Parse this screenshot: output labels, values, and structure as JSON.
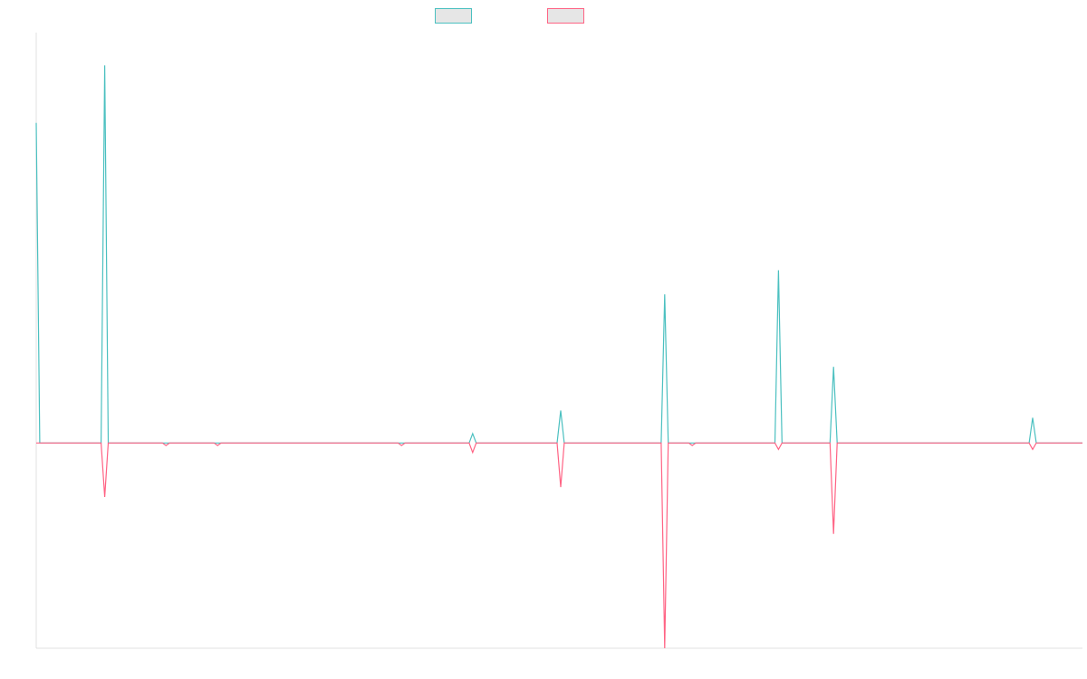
{
  "chart_data": {
    "type": "line",
    "title": "",
    "xlabel": "",
    "ylabel": "",
    "legend": {
      "placement": "top-center",
      "show_labels": false
    },
    "grid": false,
    "xlim": [
      0,
      1177
    ],
    "ylim": [
      -100,
      200
    ],
    "series": [
      {
        "color": "#4bc0c0",
        "legend_fill": "#e6e6e6",
        "points": [
          {
            "x": 0,
            "y": 156
          },
          {
            "x": 4,
            "y": 0
          },
          {
            "x": 73,
            "y": 0
          },
          {
            "x": 77,
            "y": 184
          },
          {
            "x": 81,
            "y": 0
          },
          {
            "x": 487,
            "y": 0
          },
          {
            "x": 491,
            "y": 4.6
          },
          {
            "x": 495,
            "y": 0
          },
          {
            "x": 586,
            "y": 0
          },
          {
            "x": 590,
            "y": 15.8
          },
          {
            "x": 594,
            "y": 0
          },
          {
            "x": 703,
            "y": 0
          },
          {
            "x": 707,
            "y": 72.4
          },
          {
            "x": 711,
            "y": 0
          },
          {
            "x": 831,
            "y": 0
          },
          {
            "x": 835,
            "y": 84.2
          },
          {
            "x": 839,
            "y": 0
          },
          {
            "x": 893,
            "y": 0
          },
          {
            "x": 897,
            "y": 37.1
          },
          {
            "x": 901,
            "y": 0
          },
          {
            "x": 1117,
            "y": 0
          },
          {
            "x": 1121,
            "y": 12.3
          },
          {
            "x": 1125,
            "y": 0
          },
          {
            "x": 1177,
            "y": 0
          }
        ]
      },
      {
        "color": "#ff6384",
        "legend_fill": "#e6e6e6",
        "points": [
          {
            "x": 0,
            "y": 0
          },
          {
            "x": 73,
            "y": 0
          },
          {
            "x": 77,
            "y": -26.3
          },
          {
            "x": 81,
            "y": 0
          },
          {
            "x": 142,
            "y": 0
          },
          {
            "x": 146,
            "y": -1.2
          },
          {
            "x": 150,
            "y": 0
          },
          {
            "x": 200,
            "y": 0
          },
          {
            "x": 204,
            "y": -1.2
          },
          {
            "x": 208,
            "y": 0
          },
          {
            "x": 407,
            "y": 0
          },
          {
            "x": 411,
            "y": -1.2
          },
          {
            "x": 415,
            "y": 0
          },
          {
            "x": 487,
            "y": 0
          },
          {
            "x": 491,
            "y": -4.6
          },
          {
            "x": 495,
            "y": 0
          },
          {
            "x": 586,
            "y": 0
          },
          {
            "x": 590,
            "y": -21.5
          },
          {
            "x": 594,
            "y": 0
          },
          {
            "x": 703,
            "y": 0
          },
          {
            "x": 707,
            "y": -100
          },
          {
            "x": 711,
            "y": 0
          },
          {
            "x": 734,
            "y": 0
          },
          {
            "x": 738,
            "y": -1.2
          },
          {
            "x": 742,
            "y": 0
          },
          {
            "x": 831,
            "y": 0
          },
          {
            "x": 835,
            "y": -3.1
          },
          {
            "x": 839,
            "y": 0
          },
          {
            "x": 893,
            "y": 0
          },
          {
            "x": 897,
            "y": -44.3
          },
          {
            "x": 901,
            "y": 0
          },
          {
            "x": 1117,
            "y": 0
          },
          {
            "x": 1121,
            "y": -3.1
          },
          {
            "x": 1125,
            "y": 0
          },
          {
            "x": 1177,
            "y": 0
          }
        ]
      }
    ]
  },
  "colors": {
    "axis": "#e0e0e0",
    "background": "#ffffff"
  }
}
